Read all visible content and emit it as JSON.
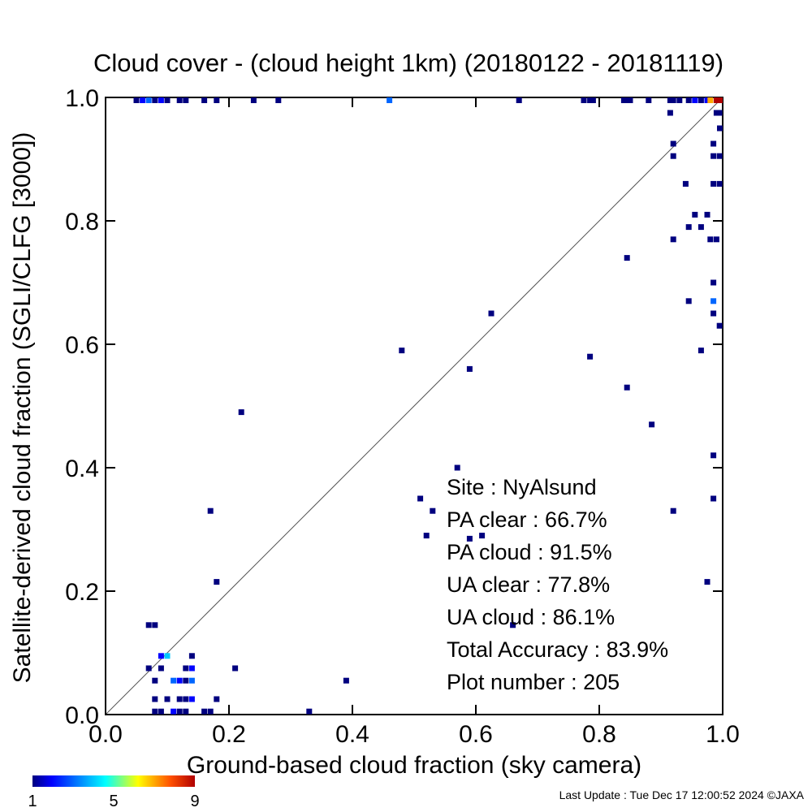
{
  "chart_data": {
    "type": "heatmap",
    "title": "Cloud cover - (cloud height 1km)  (20180122 - 20181119)",
    "xlabel": "Ground-based cloud fraction (sky camera)",
    "ylabel": "Satellite-derived cloud fraction (SGLI/CLFG [3000])",
    "xlim": [
      0,
      1
    ],
    "ylim": [
      0,
      1
    ],
    "xticks": [
      "0.0",
      "0.2",
      "0.4",
      "0.6",
      "0.8",
      "1.0"
    ],
    "yticks": [
      "0.0",
      "0.2",
      "0.4",
      "0.6",
      "0.8",
      "1.0"
    ],
    "grid": false,
    "reference_line": "1:1 diagonal",
    "stats": [
      {
        "label": "Site : NyAlsund"
      },
      {
        "label": "PA clear :  66.7%"
      },
      {
        "label": "PA cloud :  91.5%"
      },
      {
        "label": "UA clear :  77.8%"
      },
      {
        "label": "UA cloud :  86.1%"
      },
      {
        "label": "Total Accuracy :  83.9%"
      },
      {
        "label": "Plot number :       205"
      }
    ],
    "colorbar": {
      "min": 1,
      "max": 9,
      "ticks": [
        "1",
        "5",
        "9"
      ],
      "colormap": "rainbow"
    },
    "points": [
      [
        0.05,
        1.0,
        1
      ],
      [
        0.06,
        1.0,
        2
      ],
      [
        0.07,
        1.0,
        3
      ],
      [
        0.08,
        1.0,
        1
      ],
      [
        0.09,
        1.0,
        2
      ],
      [
        0.1,
        1.0,
        1
      ],
      [
        0.12,
        1.0,
        1
      ],
      [
        0.13,
        1.0,
        1
      ],
      [
        0.16,
        1.0,
        1
      ],
      [
        0.18,
        1.0,
        1
      ],
      [
        0.24,
        1.0,
        1
      ],
      [
        0.28,
        1.0,
        1
      ],
      [
        0.46,
        1.0,
        3
      ],
      [
        0.67,
        1.0,
        1
      ],
      [
        0.775,
        1.0,
        1
      ],
      [
        0.785,
        1.0,
        1
      ],
      [
        0.79,
        1.0,
        1
      ],
      [
        0.84,
        1.0,
        1
      ],
      [
        0.845,
        1.0,
        1
      ],
      [
        0.85,
        1.0,
        1
      ],
      [
        0.88,
        1.0,
        1
      ],
      [
        0.915,
        1.0,
        1
      ],
      [
        0.92,
        1.0,
        1
      ],
      [
        0.93,
        1.0,
        1
      ],
      [
        0.945,
        1.0,
        1
      ],
      [
        0.955,
        1.0,
        2
      ],
      [
        0.965,
        1.0,
        1
      ],
      [
        0.975,
        1.0,
        2
      ],
      [
        0.98,
        1.0,
        7
      ],
      [
        0.99,
        1.0,
        9
      ],
      [
        1.0,
        1.0,
        9
      ],
      [
        0.915,
        0.975,
        1
      ],
      [
        0.99,
        0.975,
        1
      ],
      [
        0.995,
        0.975,
        1
      ],
      [
        1.0,
        0.95,
        1
      ],
      [
        0.92,
        0.925,
        1
      ],
      [
        0.985,
        0.925,
        1
      ],
      [
        0.92,
        0.905,
        1
      ],
      [
        0.985,
        0.905,
        1
      ],
      [
        0.995,
        0.905,
        1
      ],
      [
        0.94,
        0.86,
        1
      ],
      [
        0.985,
        0.86,
        1
      ],
      [
        0.995,
        0.86,
        1
      ],
      [
        0.955,
        0.81,
        1
      ],
      [
        0.975,
        0.81,
        1
      ],
      [
        0.945,
        0.79,
        1
      ],
      [
        0.965,
        0.79,
        1
      ],
      [
        0.92,
        0.77,
        1
      ],
      [
        0.98,
        0.77,
        1
      ],
      [
        0.99,
        0.77,
        1
      ],
      [
        0.845,
        0.74,
        1
      ],
      [
        0.985,
        0.7,
        1
      ],
      [
        0.945,
        0.67,
        1
      ],
      [
        0.985,
        0.67,
        3
      ],
      [
        0.985,
        0.65,
        1
      ],
      [
        0.625,
        0.65,
        1
      ],
      [
        0.995,
        0.63,
        1
      ],
      [
        0.48,
        0.59,
        1
      ],
      [
        0.965,
        0.59,
        1
      ],
      [
        0.785,
        0.58,
        1
      ],
      [
        0.59,
        0.56,
        1
      ],
      [
        0.845,
        0.53,
        1
      ],
      [
        0.22,
        0.49,
        1
      ],
      [
        0.885,
        0.47,
        1
      ],
      [
        0.985,
        0.42,
        1
      ],
      [
        0.57,
        0.4,
        1
      ],
      [
        0.51,
        0.35,
        1
      ],
      [
        0.985,
        0.35,
        1
      ],
      [
        0.17,
        0.33,
        1
      ],
      [
        0.53,
        0.33,
        1
      ],
      [
        0.92,
        0.33,
        1
      ],
      [
        0.52,
        0.29,
        1
      ],
      [
        0.61,
        0.29,
        1
      ],
      [
        0.59,
        0.285,
        1
      ],
      [
        0.18,
        0.215,
        1
      ],
      [
        0.975,
        0.215,
        1
      ],
      [
        0.66,
        0.145,
        1
      ],
      [
        0.07,
        0.145,
        1
      ],
      [
        0.08,
        0.145,
        1
      ],
      [
        0.09,
        0.095,
        2
      ],
      [
        0.1,
        0.095,
        4
      ],
      [
        0.14,
        0.095,
        1
      ],
      [
        0.07,
        0.075,
        1
      ],
      [
        0.09,
        0.075,
        1
      ],
      [
        0.13,
        0.075,
        1
      ],
      [
        0.14,
        0.075,
        2
      ],
      [
        0.21,
        0.075,
        1
      ],
      [
        0.08,
        0.055,
        1
      ],
      [
        0.11,
        0.055,
        3
      ],
      [
        0.12,
        0.055,
        2
      ],
      [
        0.13,
        0.055,
        1
      ],
      [
        0.14,
        0.055,
        3
      ],
      [
        0.39,
        0.055,
        1
      ],
      [
        0.08,
        0.025,
        1
      ],
      [
        0.1,
        0.025,
        1
      ],
      [
        0.12,
        0.025,
        1
      ],
      [
        0.13,
        0.025,
        1
      ],
      [
        0.14,
        0.025,
        2
      ],
      [
        0.18,
        0.025,
        1
      ],
      [
        0.08,
        0.005,
        1
      ],
      [
        0.09,
        0.005,
        1
      ],
      [
        0.11,
        0.005,
        2
      ],
      [
        0.12,
        0.005,
        1
      ],
      [
        0.13,
        0.005,
        1
      ],
      [
        0.16,
        0.005,
        1
      ],
      [
        0.17,
        0.005,
        1
      ],
      [
        0.33,
        0.005,
        1
      ]
    ]
  },
  "footer": "Last Update : Tue Dec 17 12:00:52 2024  ©JAXA"
}
